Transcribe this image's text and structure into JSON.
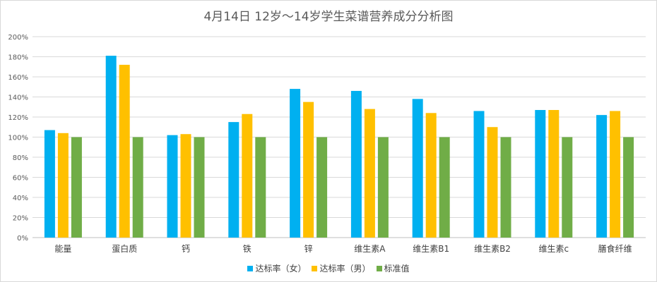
{
  "chart_data": {
    "type": "bar",
    "title": "4月14日 12岁～14岁学生菜谱营养成分分析图",
    "categories": [
      "能量",
      "蛋白质",
      "钙",
      "铁",
      "锌",
      "维生素A",
      "维生素B1",
      "维生素B2",
      "维生素c",
      "膳食纤维"
    ],
    "series": [
      {
        "name": "达标率（女）",
        "color": "#00b0f0",
        "values": [
          107,
          181,
          102,
          115,
          148,
          146,
          138,
          126,
          127,
          122
        ]
      },
      {
        "name": "达标率（男）",
        "color": "#ffc000",
        "values": [
          104,
          172,
          103,
          123,
          135,
          128,
          124,
          110,
          127,
          126
        ]
      },
      {
        "name": "标准值",
        "color": "#70ad47",
        "values": [
          100,
          100,
          100,
          100,
          100,
          100,
          100,
          100,
          100,
          100
        ]
      }
    ],
    "ylim": [
      0,
      200
    ],
    "yticks": [
      "0%",
      "20%",
      "40%",
      "60%",
      "80%",
      "100%",
      "120%",
      "140%",
      "160%",
      "180%",
      "200%"
    ],
    "grid": true,
    "legend_position": "bottom"
  }
}
